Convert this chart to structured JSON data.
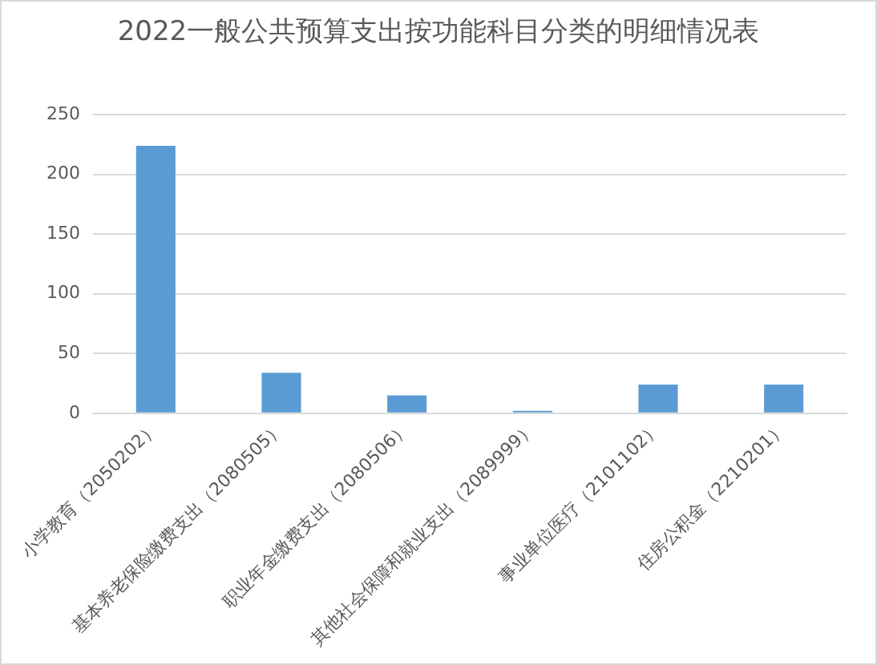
{
  "chart_data": {
    "type": "bar",
    "title": "2022一般公共预算支出按功能科目分类的明细情况表",
    "categories": [
      "小学教育（2050202）",
      "基本养老保险缴费支出（2080505）",
      "职业年金缴费支出（2080506）",
      "其他社会保障和就业支出（2089999）",
      "事业单位医疗（2101102）",
      "住房公积金（2210201）"
    ],
    "values": [
      224,
      34,
      15,
      2,
      24,
      24
    ],
    "color": "#5b9bd5",
    "ylim": [
      0,
      250
    ],
    "yticks": [
      0,
      50,
      100,
      150,
      200,
      250
    ],
    "grid": "y"
  }
}
